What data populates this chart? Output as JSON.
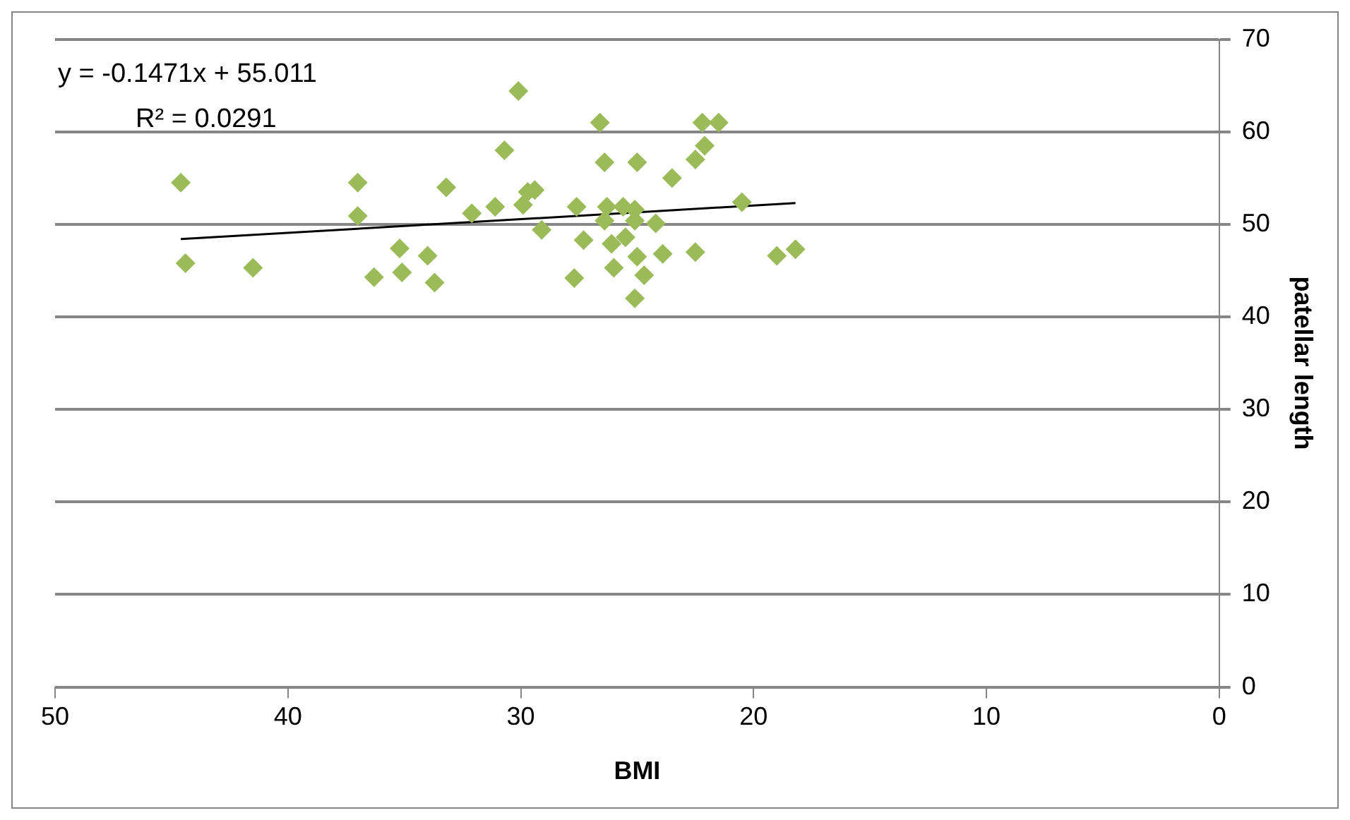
{
  "chart_data": {
    "type": "scatter",
    "xlabel": "BMI",
    "ylabel": "patellar length",
    "xlim": [
      50,
      0
    ],
    "xticks": [
      50,
      40,
      30,
      20,
      10,
      0
    ],
    "ylim": [
      0,
      70
    ],
    "yticks": [
      0,
      10,
      20,
      30,
      40,
      50,
      60,
      70
    ],
    "grid": "y",
    "legend": false,
    "marker": "diamond",
    "annotations": [
      "y = -0.1471x + 55.011",
      "R² = 0.0291"
    ],
    "series": [
      {
        "type": "scatter",
        "color": "#9bbb59",
        "x": [
          44.6,
          44.4,
          41.5,
          37.0,
          37.0,
          36.3,
          35.1,
          35.2,
          34.0,
          33.7,
          33.2,
          32.1,
          31.1,
          30.7,
          30.1,
          29.9,
          29.7,
          29.4,
          29.1,
          27.6,
          27.7,
          27.3,
          26.6,
          26.4,
          26.4,
          26.3,
          26.1,
          26.0,
          25.6,
          25.5,
          25.1,
          25.0,
          25.0,
          25.1,
          24.7,
          24.2,
          23.9,
          23.5,
          22.5,
          22.5,
          22.2,
          22.1,
          21.5,
          20.5,
          19.0,
          18.2,
          25.1
        ],
        "values": [
          54.5,
          45.8,
          45.3,
          54.5,
          50.9,
          44.3,
          44.8,
          47.4,
          46.6,
          43.7,
          54.0,
          51.2,
          51.9,
          58.0,
          64.4,
          52.1,
          53.5,
          53.7,
          49.4,
          51.9,
          44.2,
          48.3,
          61.0,
          56.7,
          50.4,
          51.9,
          47.9,
          45.3,
          51.9,
          48.6,
          50.4,
          56.7,
          46.5,
          42.0,
          44.5,
          50.1,
          46.8,
          55.0,
          57.0,
          47.0,
          61.0,
          58.5,
          61.0,
          52.4,
          46.6,
          47.3,
          51.6
        ]
      },
      {
        "type": "line",
        "color": "#000000",
        "marker": "none",
        "x": [
          44.6,
          18.2
        ],
        "values": [
          48.4,
          52.3
        ]
      }
    ]
  }
}
